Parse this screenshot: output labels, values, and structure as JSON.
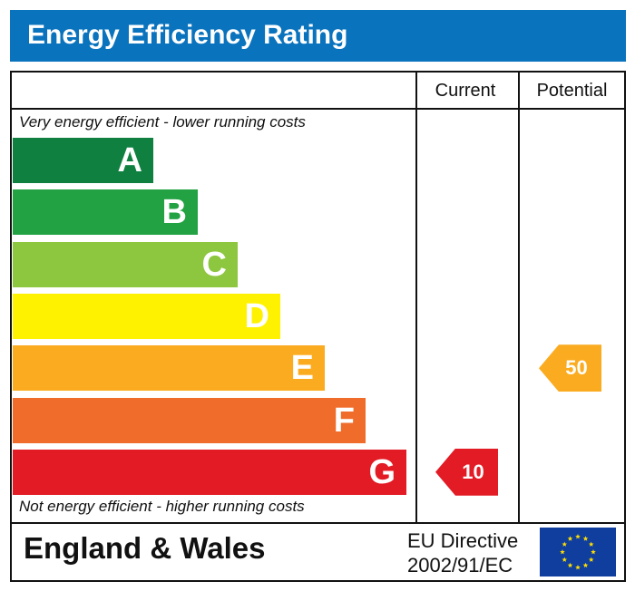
{
  "header": {
    "title": "Energy Efficiency Rating"
  },
  "columns": {
    "current": "Current",
    "potential": "Potential"
  },
  "captions": {
    "top": "Very energy efficient - lower running costs",
    "bottom": "Not energy efficient - higher running costs"
  },
  "bands": [
    {
      "letter": "A",
      "color": "#0f8040"
    },
    {
      "letter": "B",
      "color": "#23a243"
    },
    {
      "letter": "C",
      "color": "#8dc63f"
    },
    {
      "letter": "D",
      "color": "#fff200"
    },
    {
      "letter": "E",
      "color": "#fbab1f"
    },
    {
      "letter": "F",
      "color": "#ef6c2b"
    },
    {
      "letter": "G",
      "color": "#e21b25"
    }
  ],
  "ratings": {
    "current": {
      "value": "10",
      "band": "G",
      "color": "#e21b25"
    },
    "potential": {
      "value": "50",
      "band": "E",
      "color": "#fbab1f"
    }
  },
  "footer": {
    "region": "England & Wales",
    "directive_line1": "EU Directive",
    "directive_line2": "2002/91/EC"
  },
  "colors": {
    "title_bar": "#0a73bd",
    "eu_flag": "#0f3e9e",
    "eu_stars": "#ffdd00"
  }
}
